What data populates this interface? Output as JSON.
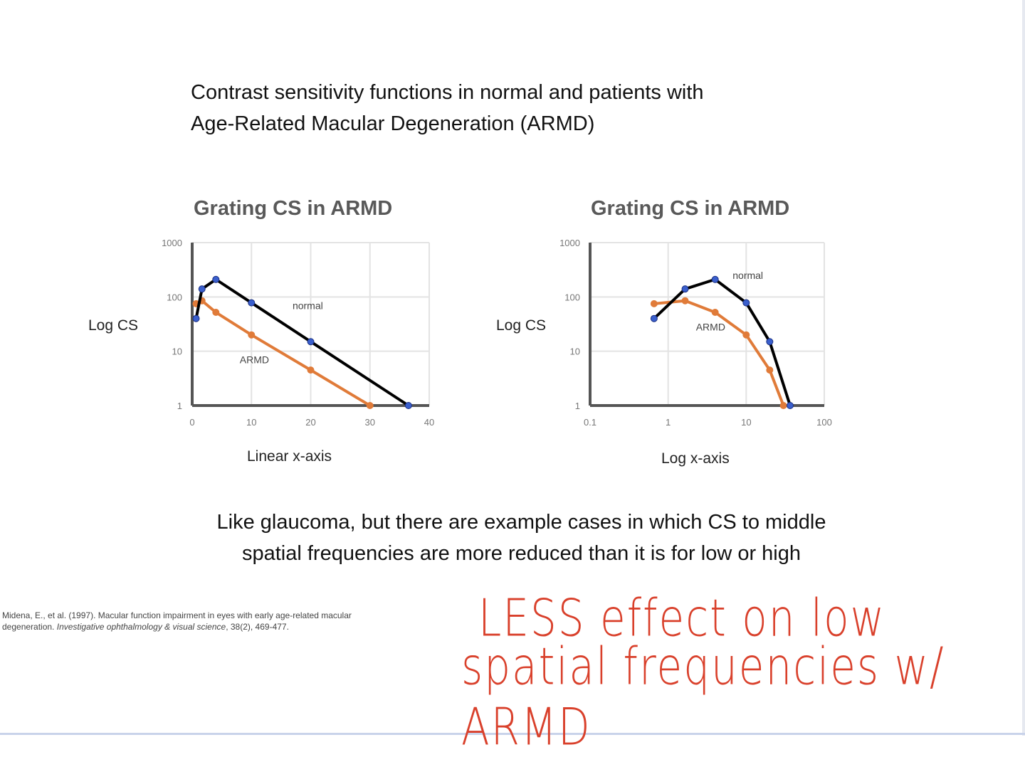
{
  "slide": {
    "title_line1": "Contrast sensitivity functions in normal and patients with",
    "title_line2": "Age-Related Macular Degeneration (ARMD)",
    "body_line1": "Like glaucoma, but there are example cases in which CS to middle",
    "body_line2": "spatial frequencies are more reduced than it is for low or high",
    "citation_line1": "Midena, E., et al. (1997). Macular function impairment in eyes with early age-related macular",
    "citation_line2_a": "degeneration. ",
    "citation_line2_b": "Investigative ophthalmology & visual science",
    "citation_line2_c": ", 38(2), 469-477.",
    "handwriting_line1": "LESS effect on low",
    "handwriting_line2": "spatial frequencies w/ ARMD",
    "handwriting_color": "#d9402b"
  },
  "chart_data": [
    {
      "type": "line",
      "title": "Grating CS in ARMD",
      "xlabel": "Linear x-axis",
      "ylabel": "Log CS",
      "xscale": "linear",
      "yscale": "log",
      "xlim": [
        0,
        40
      ],
      "ylim": [
        1,
        1000
      ],
      "xticks": [
        "0",
        "10",
        "20",
        "30",
        "40"
      ],
      "yticks": [
        "1",
        "10",
        "100",
        "1000"
      ],
      "grid": true,
      "series": [
        {
          "name": "normal",
          "color": "#000000",
          "marker": "#3a5fcd",
          "x": [
            0.66,
            1.65,
            4,
            10,
            20,
            36.5
          ],
          "y": [
            40,
            140,
            210,
            78,
            15,
            1
          ]
        },
        {
          "name": "ARMD",
          "color": "#e07b39",
          "marker": "#e07b39",
          "x": [
            0.66,
            1.65,
            4,
            10,
            20,
            30
          ],
          "y": [
            75,
            85,
            52,
            20,
            4.5,
            1
          ]
        }
      ],
      "annotations": [
        {
          "text": "normal",
          "x": 19.5,
          "y": 60
        },
        {
          "text": "ARMD",
          "x": 10.5,
          "y": 6
        }
      ]
    },
    {
      "type": "line",
      "title": "Grating CS in ARMD",
      "xlabel": "Log x-axis",
      "ylabel": "Log CS",
      "xscale": "log",
      "yscale": "log",
      "xlim": [
        0.1,
        100
      ],
      "ylim": [
        1,
        1000
      ],
      "xticks": [
        "0.1",
        "1",
        "10",
        "100"
      ],
      "yticks": [
        "1",
        "10",
        "100",
        "1000"
      ],
      "grid": true,
      "series": [
        {
          "name": "normal",
          "color": "#000000",
          "marker": "#3a5fcd",
          "x": [
            0.66,
            1.65,
            4,
            10,
            20,
            36.5
          ],
          "y": [
            40,
            140,
            210,
            78,
            15,
            1
          ]
        },
        {
          "name": "ARMD",
          "color": "#e07b39",
          "marker": "#e07b39",
          "x": [
            0.66,
            1.65,
            4,
            10,
            20,
            30
          ],
          "y": [
            75,
            85,
            52,
            20,
            4.5,
            1
          ]
        }
      ],
      "annotations": [
        {
          "text": "normal",
          "x": 10.5,
          "y": 215
        },
        {
          "text": "ARMD",
          "x": 3.5,
          "y": 24
        }
      ]
    }
  ]
}
